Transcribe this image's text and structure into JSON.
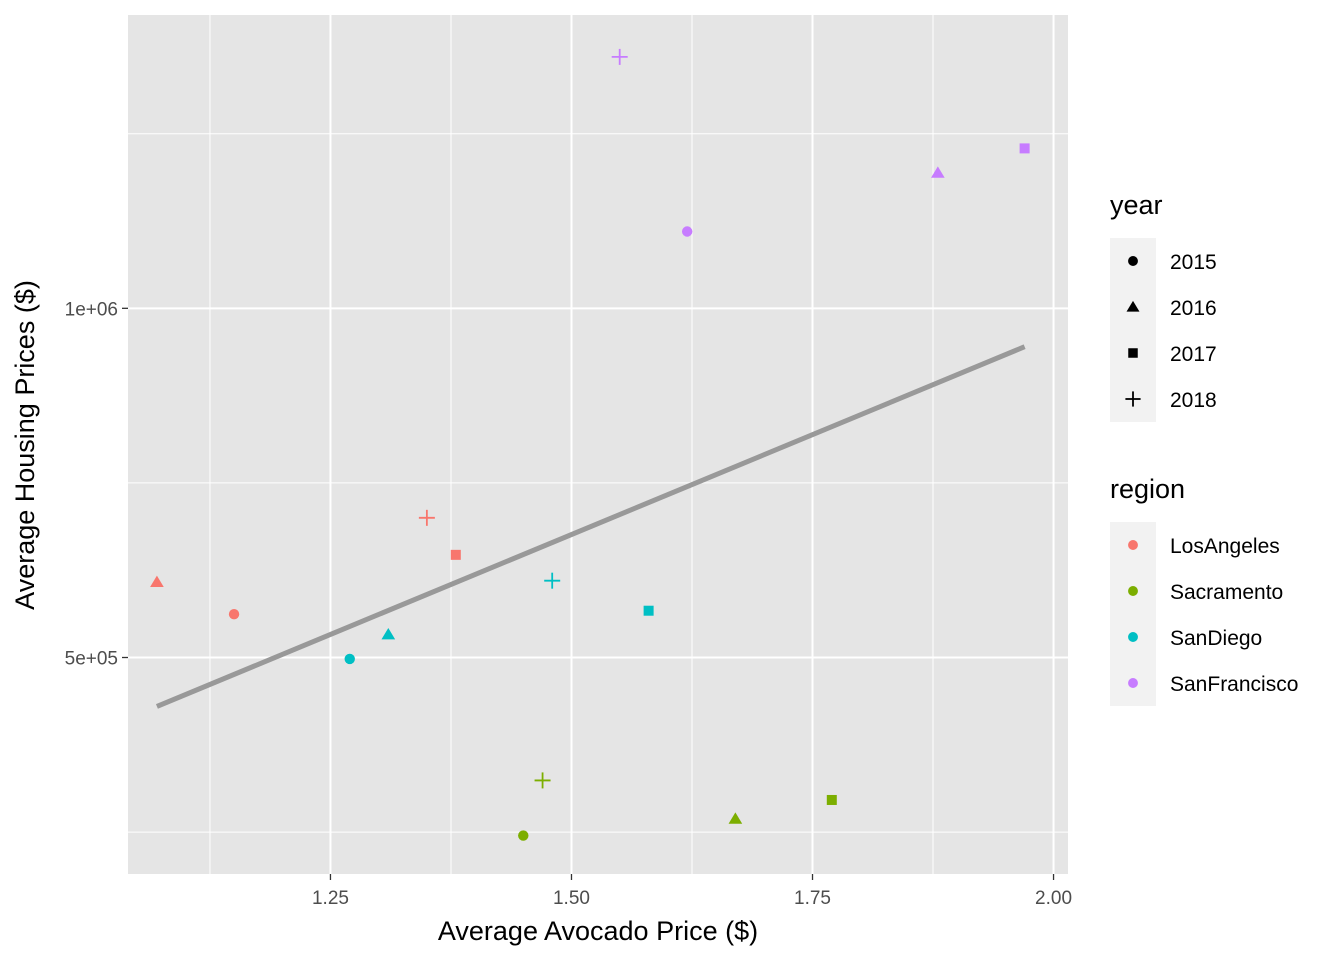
{
  "colors": {
    "panel_background": "#e5e5e5",
    "grid": "#ffffff",
    "fit_line": "#999999",
    "region_colors": {
      "LosAngeles": "#f8766d",
      "Sacramento": "#7cae00",
      "SanDiego": "#00bfc4",
      "SanFrancisco": "#c77cff"
    }
  },
  "chart_data": {
    "type": "scatter",
    "xlabel": "Average Avocado Price ($)",
    "ylabel": "Average Housing Prices ($)",
    "xlim": [
      1.04,
      2.015
    ],
    "ylim": [
      190000,
      1420000
    ],
    "x_ticks": [
      1.25,
      1.5,
      1.75,
      2.0
    ],
    "x_tick_labels": [
      "1.25",
      "1.50",
      "1.75",
      "2.00"
    ],
    "y_ticks": [
      500000,
      1000000
    ],
    "y_tick_labels": [
      "5e+05",
      "1e+06"
    ],
    "grid": true,
    "legend_position": "right",
    "legends": [
      {
        "title": "year",
        "entries": [
          {
            "label": "2015",
            "shape": "circle"
          },
          {
            "label": "2016",
            "shape": "triangle"
          },
          {
            "label": "2017",
            "shape": "square"
          },
          {
            "label": "2018",
            "shape": "plus"
          }
        ]
      },
      {
        "title": "region",
        "entries": [
          {
            "label": "LosAngeles",
            "region": "LosAngeles"
          },
          {
            "label": "Sacramento",
            "region": "Sacramento"
          },
          {
            "label": "SanDiego",
            "region": "SanDiego"
          },
          {
            "label": "SanFrancisco",
            "region": "SanFrancisco"
          }
        ]
      }
    ],
    "points": [
      {
        "region": "LosAngeles",
        "year": "2015",
        "x": 1.15,
        "y": 562000
      },
      {
        "region": "LosAngeles",
        "year": "2016",
        "x": 1.07,
        "y": 608000
      },
      {
        "region": "LosAngeles",
        "year": "2017",
        "x": 1.38,
        "y": 647000
      },
      {
        "region": "LosAngeles",
        "year": "2018",
        "x": 1.35,
        "y": 700000
      },
      {
        "region": "Sacramento",
        "year": "2015",
        "x": 1.45,
        "y": 245000
      },
      {
        "region": "Sacramento",
        "year": "2016",
        "x": 1.67,
        "y": 269000
      },
      {
        "region": "Sacramento",
        "year": "2017",
        "x": 1.77,
        "y": 296000
      },
      {
        "region": "Sacramento",
        "year": "2018",
        "x": 1.47,
        "y": 324000
      },
      {
        "region": "SanDiego",
        "year": "2015",
        "x": 1.27,
        "y": 498000
      },
      {
        "region": "SanDiego",
        "year": "2016",
        "x": 1.31,
        "y": 533000
      },
      {
        "region": "SanDiego",
        "year": "2017",
        "x": 1.58,
        "y": 567000
      },
      {
        "region": "SanDiego",
        "year": "2018",
        "x": 1.48,
        "y": 610000
      },
      {
        "region": "SanFrancisco",
        "year": "2015",
        "x": 1.62,
        "y": 1110000
      },
      {
        "region": "SanFrancisco",
        "year": "2016",
        "x": 1.88,
        "y": 1194000
      },
      {
        "region": "SanFrancisco",
        "year": "2017",
        "x": 1.97,
        "y": 1229000
      },
      {
        "region": "SanFrancisco",
        "year": "2018",
        "x": 1.55,
        "y": 1360000
      }
    ],
    "fit_line": {
      "x": [
        1.07,
        1.97
      ],
      "y": [
        430000,
        945000
      ]
    }
  }
}
